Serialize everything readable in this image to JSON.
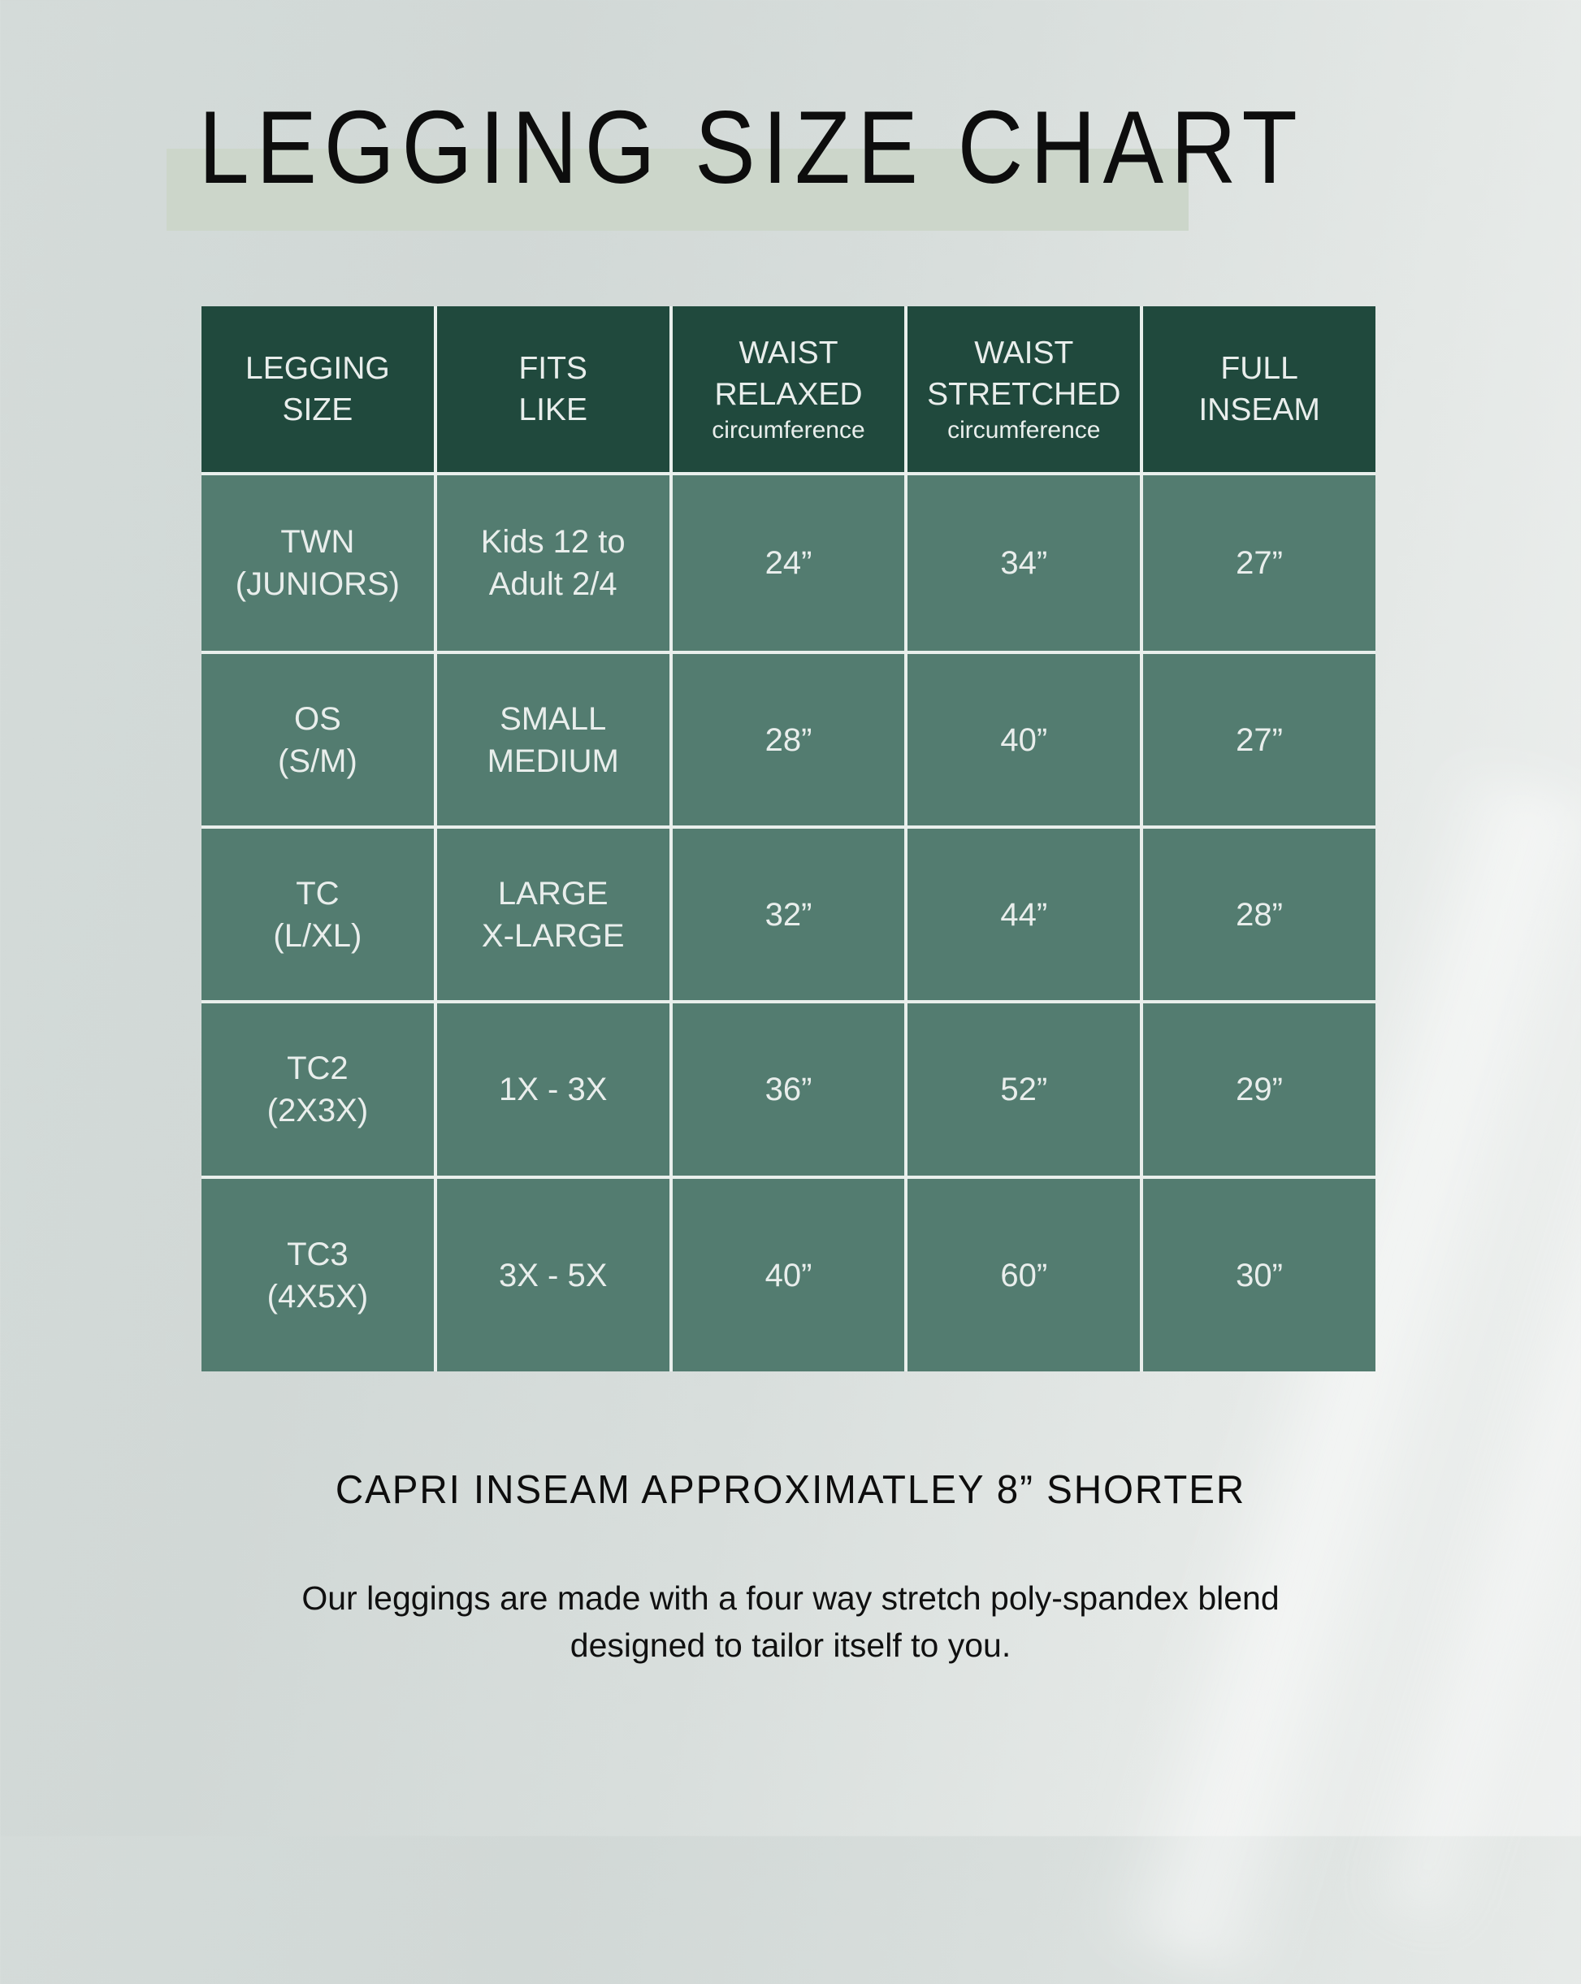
{
  "title": "LEGGING SIZE CHART",
  "caption": "CAPRI INSEAM APPROXIMATLEY 8” SHORTER",
  "description": {
    "line1": "Our leggings are made with a four way stretch poly-spandex blend",
    "line2": "designed to tailor itself to you."
  },
  "colors": {
    "page_bg": "#d6dcda",
    "title_text": "#0d0d0d",
    "highlight_bar": "#ccd6ca",
    "header_bg": "#20493d",
    "cell_bg": "#537c70",
    "cell_text": "#e9eeec",
    "grid_line": "#e9efec"
  },
  "table": {
    "headers": [
      {
        "line1": "LEGGING",
        "line2": "SIZE",
        "sub": ""
      },
      {
        "line1": "FITS",
        "line2": "LIKE",
        "sub": ""
      },
      {
        "line1": "WAIST",
        "line2": "RELAXED",
        "sub": "circumference"
      },
      {
        "line1": "WAIST",
        "line2": "STRETCHED",
        "sub": "circumference"
      },
      {
        "line1": "FULL",
        "line2": "INSEAM",
        "sub": ""
      }
    ],
    "rows": [
      {
        "size1": "TWN",
        "size2": "(JUNIORS)",
        "fits1": "Kids 12 to",
        "fits2": "Adult 2/4",
        "relaxed": "24”",
        "stretched": "34”",
        "inseam": "27”"
      },
      {
        "size1": "OS",
        "size2": "(S/M)",
        "fits1": "SMALL",
        "fits2": "MEDIUM",
        "relaxed": "28”",
        "stretched": "40”",
        "inseam": "27”"
      },
      {
        "size1": "TC",
        "size2": "(L/XL)",
        "fits1": "LARGE",
        "fits2": "X-LARGE",
        "relaxed": "32”",
        "stretched": "44”",
        "inseam": "28”"
      },
      {
        "size1": "TC2",
        "size2": "(2X3X)",
        "fits1": "1X - 3X",
        "fits2": "",
        "relaxed": "36”",
        "stretched": "52”",
        "inseam": "29”"
      },
      {
        "size1": "TC3",
        "size2": "(4X5X)",
        "fits1": "3X - 5X",
        "fits2": "",
        "relaxed": "40”",
        "stretched": "60”",
        "inseam": "30”"
      }
    ]
  },
  "chart_data": {
    "type": "table",
    "title": "LEGGING SIZE CHART",
    "columns": [
      "LEGGING SIZE",
      "FITS LIKE",
      "WAIST RELAXED circumference",
      "WAIST STRETCHED circumference",
      "FULL INSEAM"
    ],
    "rows": [
      [
        "TWN (JUNIORS)",
        "Kids 12 to Adult 2/4",
        "24”",
        "34”",
        "27”"
      ],
      [
        "OS (S/M)",
        "SMALL MEDIUM",
        "28”",
        "40”",
        "27”"
      ],
      [
        "TC (L/XL)",
        "LARGE X-LARGE",
        "32”",
        "44”",
        "28”"
      ],
      [
        "TC2 (2X3X)",
        "1X - 3X",
        "36”",
        "52”",
        "29”"
      ],
      [
        "TC3 (4X5X)",
        "3X - 5X",
        "40”",
        "60”",
        "30”"
      ]
    ],
    "notes": [
      "CAPRI INSEAM APPROXIMATLEY 8” SHORTER",
      "Our leggings are made with a four way stretch poly-spandex blend designed to tailor itself to you."
    ]
  }
}
